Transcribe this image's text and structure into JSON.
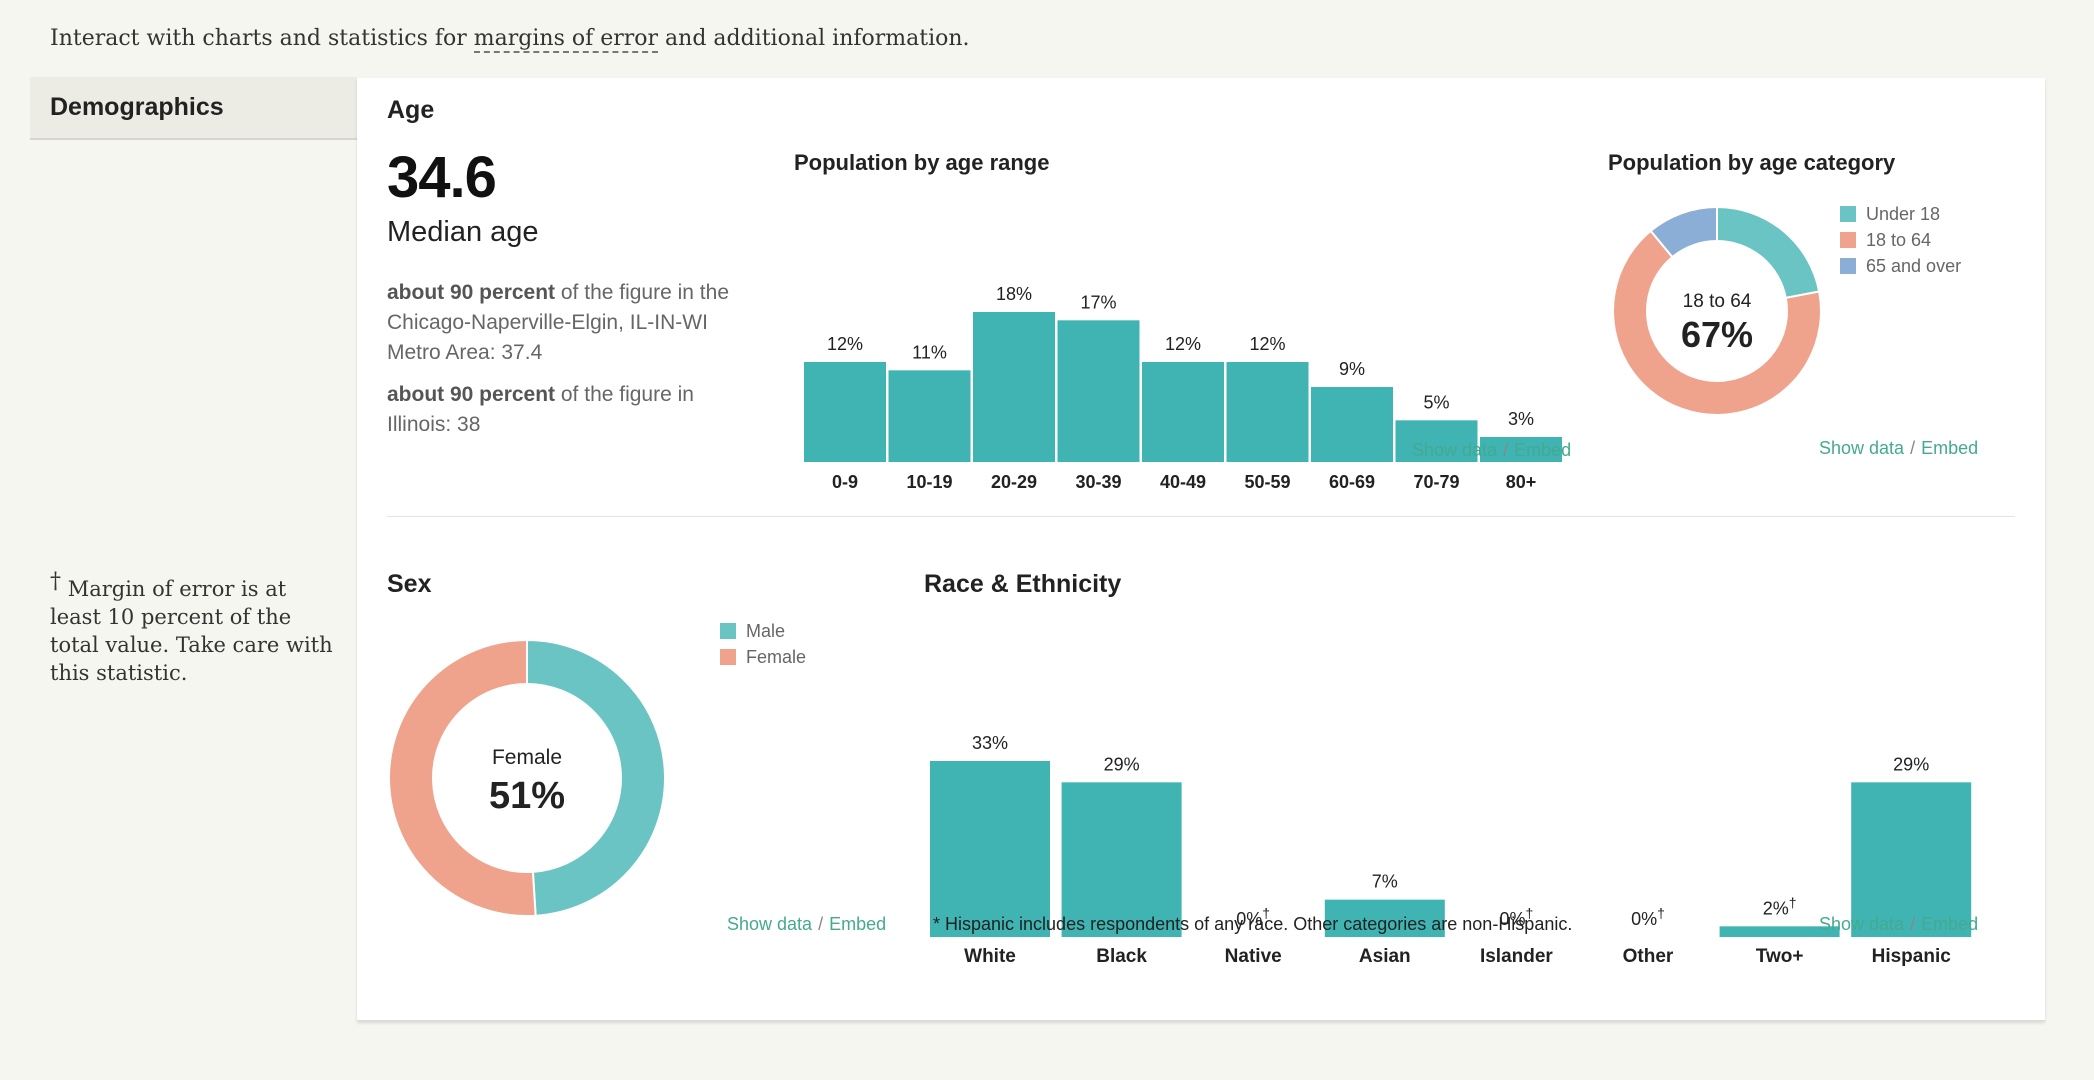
{
  "intro": {
    "before": "Interact with charts and statistics for ",
    "link": "margins of error",
    "after": " and additional information."
  },
  "sidebar": {
    "tab_label": "Demographics"
  },
  "moe_note": {
    "dagger": "†",
    "text": "Margin of error is at least 10 percent of the total value. Take care with this statistic."
  },
  "age": {
    "section_title": "Age",
    "median_value": "34.6",
    "median_label": "Median age",
    "comparisons": [
      {
        "bold": "about 90 percent",
        "rest": " of the figure in the Chicago-Naperville-Elgin, IL-IN-WI Metro Area: 37.4"
      },
      {
        "bold": "about 90 percent",
        "rest": " of the figure in Illinois: 38"
      }
    ],
    "range_chart_title": "Population by age range",
    "category_chart_title": "Population by age category",
    "show_data": "Show data",
    "sep": "/",
    "embed": "Embed"
  },
  "sex": {
    "section_title": "Sex",
    "show_data": "Show data",
    "sep": "/",
    "embed": "Embed"
  },
  "race": {
    "section_title": "Race & Ethnicity",
    "footnote": "* Hispanic includes respondents of any race. Other categories are non-Hispanic.",
    "show_data": "Show data",
    "sep": "/",
    "embed": "Embed"
  },
  "colors": {
    "teal": "#40b3b3",
    "teal_light": "#6ac4c4",
    "salmon": "#f0a38c",
    "blue": "#8aaed6",
    "link_green": "#44aa8f"
  },
  "chart_data": [
    {
      "id": "age_range",
      "type": "bar",
      "title": "Population by age range",
      "categories": [
        "0-9",
        "10-19",
        "20-29",
        "30-39",
        "40-49",
        "50-59",
        "60-69",
        "70-79",
        "80+"
      ],
      "values": [
        12,
        11,
        18,
        17,
        12,
        12,
        9,
        5,
        3
      ],
      "labels": [
        "12%",
        "11%",
        "18%",
        "17%",
        "12%",
        "12%",
        "9%",
        "5%",
        "3%"
      ],
      "unit": "%"
    },
    {
      "id": "age_category",
      "type": "pie",
      "title": "Population by age category",
      "categories": [
        "Under 18",
        "18 to 64",
        "65 and over"
      ],
      "values": [
        22,
        67,
        11
      ],
      "center_label": "18 to 64",
      "center_value": "67%",
      "colors": [
        "#6ac4c4",
        "#f0a38c",
        "#8aaed6"
      ]
    },
    {
      "id": "sex",
      "type": "pie",
      "categories": [
        "Male",
        "Female"
      ],
      "values": [
        49,
        51
      ],
      "center_label": "Female",
      "center_value": "51%",
      "colors": [
        "#6ac4c4",
        "#f0a38c"
      ]
    },
    {
      "id": "race",
      "type": "bar",
      "categories": [
        "White",
        "Black",
        "Native",
        "Asian",
        "Islander",
        "Other",
        "Two+",
        "Hispanic"
      ],
      "values": [
        33,
        29,
        0,
        7,
        0,
        0,
        2,
        29
      ],
      "labels": [
        "33%",
        "29%",
        "0%",
        "7%",
        "0%",
        "0%",
        "2%",
        "29%"
      ],
      "dagger": [
        false,
        false,
        true,
        false,
        true,
        true,
        true,
        false
      ],
      "unit": "%"
    }
  ]
}
